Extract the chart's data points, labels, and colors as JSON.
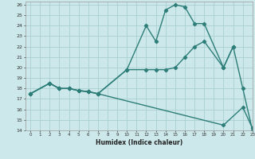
{
  "xlabel": "Humidex (Indice chaleur)",
  "xlim": [
    -0.5,
    23
  ],
  "ylim": [
    14,
    26.3
  ],
  "yticks": [
    14,
    15,
    16,
    17,
    18,
    19,
    20,
    21,
    22,
    23,
    24,
    25,
    26
  ],
  "xticks": [
    0,
    1,
    2,
    3,
    4,
    5,
    6,
    7,
    8,
    9,
    10,
    11,
    12,
    13,
    14,
    15,
    16,
    17,
    18,
    19,
    20,
    21,
    22,
    23
  ],
  "bg_color": "#cce8ea",
  "grid_color": "#aacfd2",
  "line_color": "#2d7d78",
  "line1_x": [
    0,
    2,
    3,
    4,
    5,
    6,
    7,
    10,
    12,
    13,
    14,
    15,
    16,
    17,
    18,
    20,
    21,
    22,
    23
  ],
  "line1_y": [
    17.5,
    18.5,
    18.0,
    18.0,
    17.8,
    17.7,
    17.5,
    19.8,
    24.0,
    22.5,
    25.5,
    26.0,
    25.8,
    24.2,
    24.2,
    20.0,
    22.0,
    18.0,
    14.0
  ],
  "line2_x": [
    0,
    2,
    3,
    4,
    5,
    6,
    7,
    10,
    12,
    13,
    14,
    15,
    16,
    17,
    18,
    20,
    21
  ],
  "line2_y": [
    17.5,
    18.5,
    18.0,
    18.0,
    17.8,
    17.7,
    17.5,
    19.8,
    19.8,
    19.8,
    19.8,
    20.0,
    21.0,
    22.0,
    22.5,
    20.0,
    22.0
  ],
  "line3_x": [
    0,
    2,
    3,
    4,
    5,
    6,
    7,
    20,
    22,
    23
  ],
  "line3_y": [
    17.5,
    18.5,
    18.0,
    18.0,
    17.8,
    17.7,
    17.5,
    14.5,
    16.2,
    14.2
  ]
}
